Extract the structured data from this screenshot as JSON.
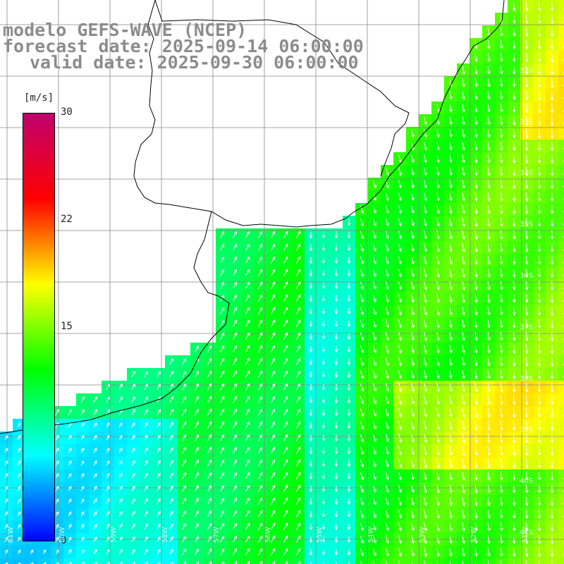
{
  "title": {
    "line1": "modelo GEFS-WAVE (NCEP)",
    "line2": "forecast date: 2025-09-14 06:00:00",
    "line3": "valid date: 2025-09-30 06:00:00"
  },
  "colorbar": {
    "units": "[m/s]",
    "min": 0,
    "max": 30,
    "ticks": [
      "30",
      "22",
      "15",
      "0"
    ],
    "colors": [
      "#0000ff",
      "#00ffff",
      "#00ff00",
      "#ffff00",
      "#ff0000",
      "#c0006e"
    ]
  },
  "map": {
    "lat_labels": [
      "32S",
      "33S",
      "34S",
      "35S",
      "36S",
      "37S",
      "38S",
      "39S",
      "40S",
      "41S"
    ],
    "lon_labels": [
      "61W",
      "60W",
      "59W",
      "58W",
      "57W",
      "56W",
      "55W",
      "54W",
      "53W",
      "52W",
      "51W"
    ],
    "ocean_color": "#00dd55",
    "land_color": "#ffffff",
    "coast_color": "#000000",
    "arrow_color": "#ffffff"
  }
}
